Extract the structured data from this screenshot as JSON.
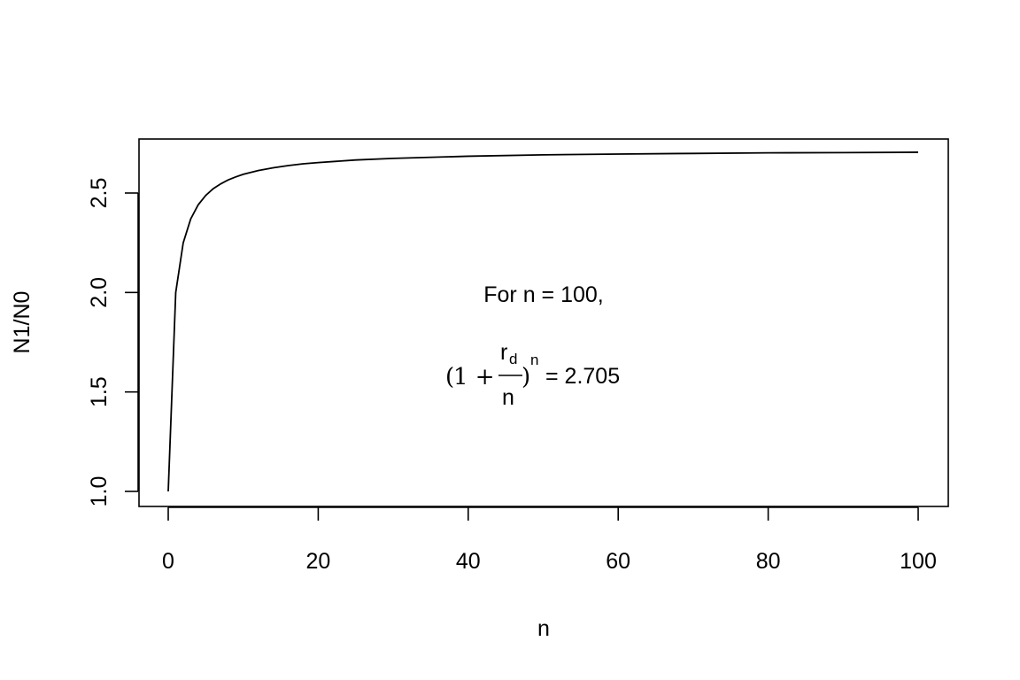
{
  "chart_data": {
    "type": "line",
    "title": "",
    "xlabel": "n",
    "ylabel": "N1/N0",
    "xlim": [
      0,
      100
    ],
    "ylim": [
      1.0,
      2.7
    ],
    "x_ticks": [
      0,
      20,
      40,
      60,
      80,
      100
    ],
    "y_ticks": [
      1.0,
      1.5,
      2.0,
      2.5
    ],
    "x_tick_labels": [
      "0",
      "20",
      "40",
      "60",
      "80",
      "100"
    ],
    "y_tick_labels": [
      "1.0",
      "1.5",
      "2.0",
      "2.5"
    ],
    "grid": false,
    "legend": "none",
    "series": [
      {
        "function": "(1 + 1/n)^n, with value 1 at n = 0",
        "x": [
          0,
          1,
          2,
          3,
          4,
          5,
          6,
          7,
          8,
          9,
          10,
          12,
          14,
          16,
          18,
          20,
          25,
          30,
          40,
          50,
          60,
          70,
          80,
          90,
          100
        ],
        "y": [
          1.0,
          2.0,
          2.25,
          2.37,
          2.441,
          2.488,
          2.522,
          2.546,
          2.566,
          2.581,
          2.594,
          2.613,
          2.627,
          2.638,
          2.647,
          2.653,
          2.666,
          2.674,
          2.685,
          2.692,
          2.696,
          2.699,
          2.702,
          2.703,
          2.705
        ],
        "color": "#000000"
      }
    ],
    "annotations": {
      "line1": "For n = 100,",
      "open_paren": "(",
      "one_plus": "1 +",
      "r": "r",
      "d": "d",
      "n_den": "n",
      "close_paren": ")",
      "exp_n": "n",
      "equals_value": "= 2.705"
    }
  }
}
